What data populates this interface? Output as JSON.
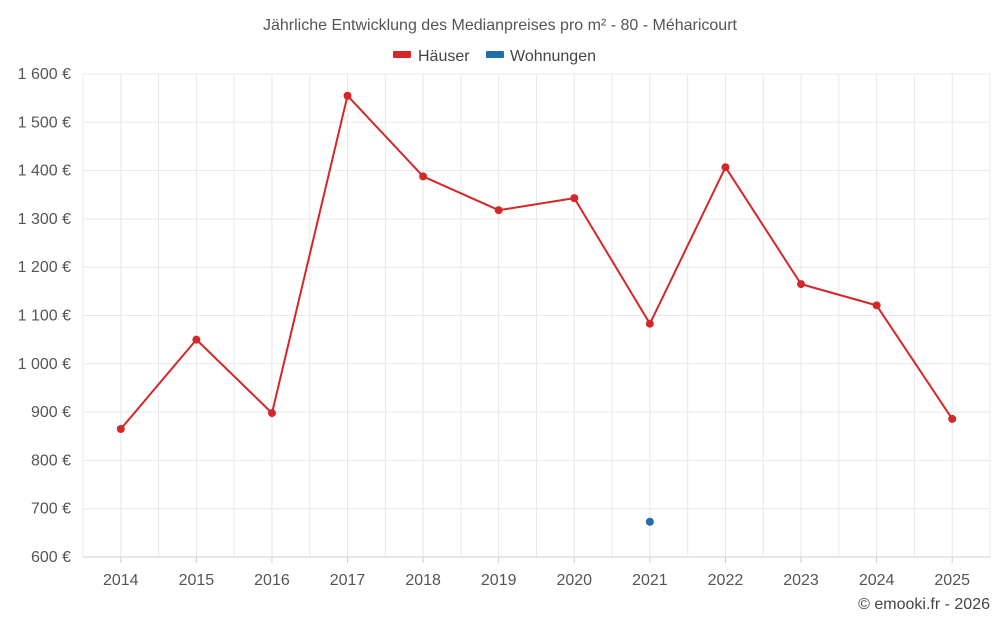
{
  "chart_data": {
    "type": "line",
    "title": "Jährliche Entwicklung des Medianpreises pro m² - 80 - Méharicourt",
    "categories": [
      "2014",
      "2015",
      "2016",
      "2017",
      "2018",
      "2019",
      "2020",
      "2021",
      "2022",
      "2023",
      "2024",
      "2025"
    ],
    "series": [
      {
        "name": "Häuser",
        "color": "#d62728",
        "values": [
          865,
          1050,
          898,
          1555,
          1388,
          1318,
          1343,
          1083,
          1407,
          1165,
          1121,
          886
        ]
      },
      {
        "name": "Wohnungen",
        "color": "#1f6fad",
        "values": [
          null,
          null,
          null,
          null,
          null,
          null,
          null,
          673,
          null,
          null,
          null,
          null
        ]
      }
    ],
    "ylim": [
      600,
      1600
    ],
    "yticks": [
      600,
      700,
      800,
      900,
      1000,
      1100,
      1200,
      1300,
      1400,
      1500,
      1600
    ],
    "ytick_labels": [
      "600 €",
      "700 €",
      "800 €",
      "900 €",
      "1 000 €",
      "1 100 €",
      "1 200 €",
      "1 300 €",
      "1 400 €",
      "1 500 €",
      "1 600 €"
    ],
    "xlabel": "",
    "ylabel": "",
    "grid": true,
    "legend_position": "top-center"
  },
  "credit": "© emooki.fr - 2026"
}
